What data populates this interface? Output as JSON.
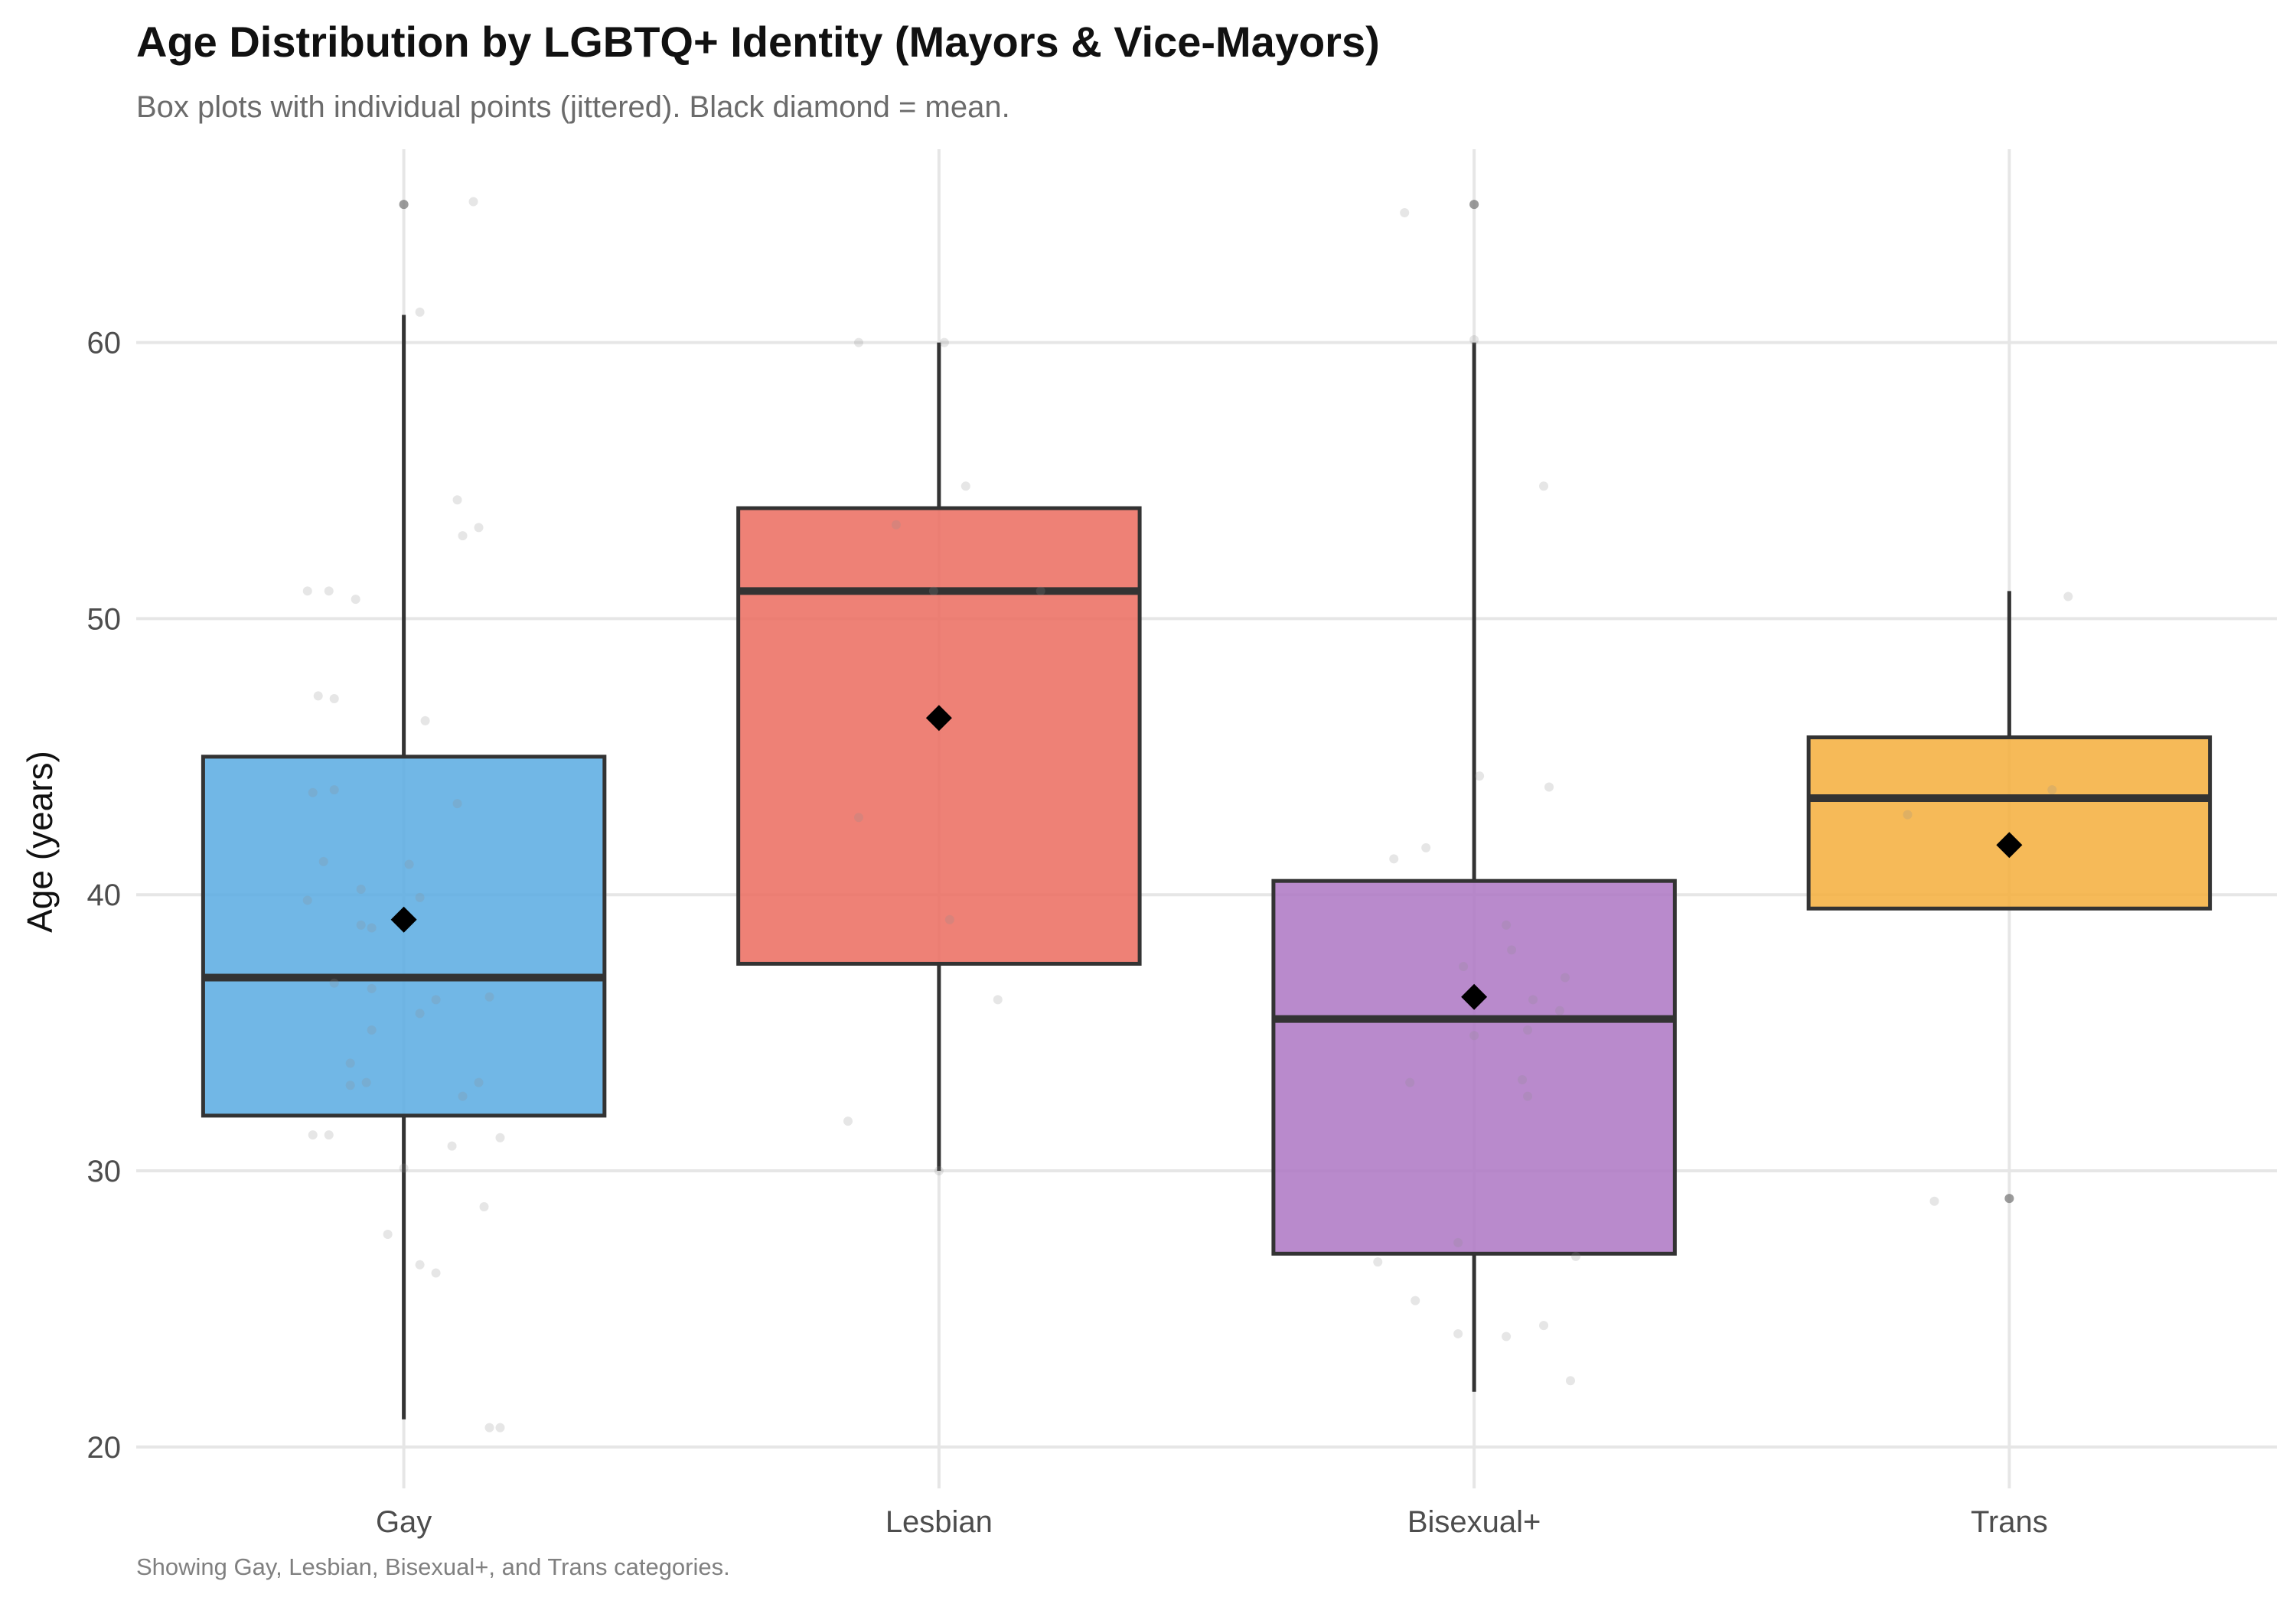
{
  "chart_data": {
    "type": "box",
    "title": "Age Distribution by LGBTQ+ Identity (Mayors & Vice-Mayors)",
    "subtitle": "Box plots with individual points (jittered). Black diamond = mean.",
    "caption": "Showing Gay, Lesbian, Bisexual+, and Trans categories.",
    "xlabel": "",
    "ylabel": "Age (years)",
    "ylim": [
      18.5,
      67
    ],
    "yticks": [
      20,
      30,
      40,
      50,
      60
    ],
    "categories": [
      "Gay",
      "Lesbian",
      "Bisexual+",
      "Trans"
    ],
    "series": [
      {
        "name": "Gay",
        "color": "#5DADE2",
        "whisker_low": 21,
        "q1": 32,
        "median": 37,
        "q3": 45,
        "whisker_high": 61,
        "mean": 39.1,
        "outliers": [
          65
        ],
        "points": [
          {
            "dx": -0.18,
            "y": 51.0
          },
          {
            "dx": -0.14,
            "y": 51.0
          },
          {
            "dx": -0.09,
            "y": 50.7
          },
          {
            "dx": -0.16,
            "y": 47.2
          },
          {
            "dx": -0.13,
            "y": 47.1
          },
          {
            "dx": 0.04,
            "y": 46.3
          },
          {
            "dx": -0.17,
            "y": 43.7
          },
          {
            "dx": -0.13,
            "y": 43.8
          },
          {
            "dx": 0.1,
            "y": 43.3
          },
          {
            "dx": -0.15,
            "y": 41.2
          },
          {
            "dx": 0.01,
            "y": 41.1
          },
          {
            "dx": -0.18,
            "y": 39.8
          },
          {
            "dx": -0.08,
            "y": 40.2
          },
          {
            "dx": 0.03,
            "y": 39.9
          },
          {
            "dx": -0.08,
            "y": 38.9
          },
          {
            "dx": -0.06,
            "y": 38.8
          },
          {
            "dx": -0.13,
            "y": 36.8
          },
          {
            "dx": -0.06,
            "y": 36.6
          },
          {
            "dx": 0.06,
            "y": 36.2
          },
          {
            "dx": 0.16,
            "y": 36.3
          },
          {
            "dx": 0.03,
            "y": 35.7
          },
          {
            "dx": -0.06,
            "y": 35.1
          },
          {
            "dx": -0.1,
            "y": 33.9
          },
          {
            "dx": -0.1,
            "y": 33.1
          },
          {
            "dx": -0.07,
            "y": 33.2
          },
          {
            "dx": 0.14,
            "y": 33.2
          },
          {
            "dx": 0.11,
            "y": 32.7
          },
          {
            "dx": -0.17,
            "y": 31.3
          },
          {
            "dx": -0.14,
            "y": 31.3
          },
          {
            "dx": 0.18,
            "y": 31.2
          },
          {
            "dx": 0.09,
            "y": 30.9
          },
          {
            "dx": 0.0,
            "y": 30.1
          },
          {
            "dx": 0.15,
            "y": 28.7
          },
          {
            "dx": -0.03,
            "y": 27.7
          },
          {
            "dx": 0.03,
            "y": 26.6
          },
          {
            "dx": 0.06,
            "y": 26.3
          },
          {
            "dx": 0.16,
            "y": 20.7
          },
          {
            "dx": 0.18,
            "y": 20.7
          },
          {
            "dx": 0.0,
            "y": 65.0
          },
          {
            "dx": 0.13,
            "y": 65.1
          },
          {
            "dx": 0.03,
            "y": 61.1
          },
          {
            "dx": 0.1,
            "y": 54.3
          },
          {
            "dx": 0.14,
            "y": 53.3
          },
          {
            "dx": 0.11,
            "y": 53.0
          }
        ]
      },
      {
        "name": "Lesbian",
        "color": "#EC7063",
        "whisker_low": 30,
        "q1": 37.5,
        "median": 51,
        "q3": 54,
        "whisker_high": 60,
        "mean": 46.4,
        "outliers": [],
        "points": [
          {
            "dx": -0.15,
            "y": 60.0
          },
          {
            "dx": 0.01,
            "y": 60.0
          },
          {
            "dx": 0.05,
            "y": 54.8
          },
          {
            "dx": -0.08,
            "y": 53.4
          },
          {
            "dx": -0.01,
            "y": 51.0
          },
          {
            "dx": 0.19,
            "y": 51.0
          },
          {
            "dx": -0.15,
            "y": 42.8
          },
          {
            "dx": 0.02,
            "y": 39.1
          },
          {
            "dx": 0.11,
            "y": 36.2
          },
          {
            "dx": -0.17,
            "y": 31.8
          },
          {
            "dx": 0.0,
            "y": 30.0
          }
        ]
      },
      {
        "name": "Bisexual+",
        "color": "#AF7AC5",
        "whisker_low": 22,
        "q1": 27,
        "median": 35.5,
        "q3": 40.5,
        "whisker_high": 60,
        "mean": 36.3,
        "outliers": [
          65
        ],
        "points": [
          {
            "dx": -0.13,
            "y": 64.7
          },
          {
            "dx": 0.0,
            "y": 65.0
          },
          {
            "dx": 0.0,
            "y": 60.1
          },
          {
            "dx": 0.13,
            "y": 54.8
          },
          {
            "dx": 0.01,
            "y": 44.3
          },
          {
            "dx": 0.14,
            "y": 43.9
          },
          {
            "dx": -0.09,
            "y": 41.7
          },
          {
            "dx": -0.15,
            "y": 41.3
          },
          {
            "dx": 0.06,
            "y": 38.9
          },
          {
            "dx": 0.07,
            "y": 38.0
          },
          {
            "dx": -0.02,
            "y": 37.4
          },
          {
            "dx": 0.17,
            "y": 37.0
          },
          {
            "dx": 0.11,
            "y": 36.2
          },
          {
            "dx": 0.16,
            "y": 35.8
          },
          {
            "dx": 0.1,
            "y": 35.1
          },
          {
            "dx": 0.0,
            "y": 34.9
          },
          {
            "dx": -0.12,
            "y": 33.2
          },
          {
            "dx": 0.09,
            "y": 33.3
          },
          {
            "dx": 0.1,
            "y": 32.7
          },
          {
            "dx": -0.03,
            "y": 27.4
          },
          {
            "dx": 0.19,
            "y": 26.9
          },
          {
            "dx": -0.18,
            "y": 26.7
          },
          {
            "dx": -0.11,
            "y": 25.3
          },
          {
            "dx": 0.13,
            "y": 24.4
          },
          {
            "dx": -0.03,
            "y": 24.1
          },
          {
            "dx": 0.06,
            "y": 24.0
          },
          {
            "dx": 0.18,
            "y": 22.4
          }
        ]
      },
      {
        "name": "Trans",
        "color": "#F5B041",
        "whisker_low": 39.5,
        "q1": 39.5,
        "median": 43.5,
        "q3": 45.7,
        "whisker_high": 51,
        "mean": 41.8,
        "outliers": [
          29
        ],
        "points": [
          {
            "dx": 0.11,
            "y": 50.8
          },
          {
            "dx": -0.19,
            "y": 42.9
          },
          {
            "dx": 0.08,
            "y": 43.8
          },
          {
            "dx": -0.14,
            "y": 28.9
          },
          {
            "dx": 0.0,
            "y": 29.0
          }
        ]
      }
    ]
  }
}
